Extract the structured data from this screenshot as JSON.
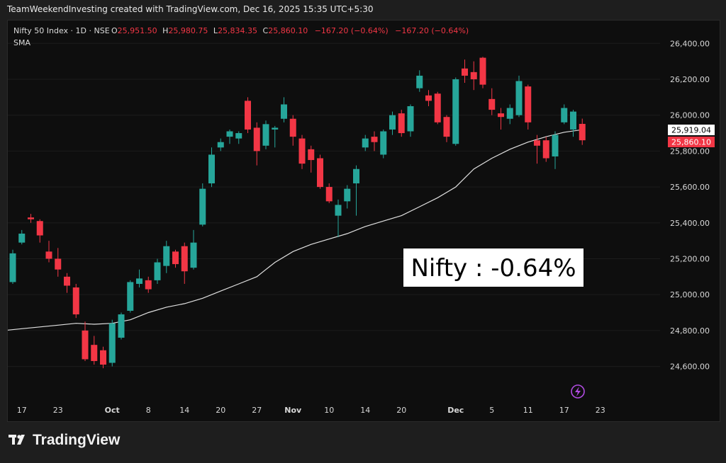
{
  "header": {
    "credit": "TeamWeekendInvesting created with TradingView.com, Dec 16, 2025 15:35 UTC+5:30"
  },
  "legend": {
    "symbol": "Nifty 50 Index · 1D · NSE",
    "o_label": "O",
    "o_value": "25,951.50",
    "h_label": "H",
    "h_value": "25,980.75",
    "l_label": "L",
    "l_value": "25,834.35",
    "c_label": "C",
    "c_value": "25,860.10",
    "change": "−167.20 (−0.64%)",
    "change2": "−167.20 (−0.64%)",
    "indicator": "SMA"
  },
  "callout": {
    "text": "Nifty : -0.64%"
  },
  "price_tags": {
    "sma": "25,919.04",
    "close": "25,860.10"
  },
  "footer": {
    "brand": "TradingView"
  },
  "colors": {
    "up": "#26a69a",
    "down": "#f23645",
    "sma": "#e0e0e0",
    "background": "#0e0e0e",
    "lightning": "#b04be0"
  },
  "chart_data": {
    "type": "candlestick",
    "ylim": [
      24480,
      26480
    ],
    "y_ticks": [
      "26,400.00",
      "26,200.00",
      "26,000.00",
      "25,800.00",
      "25,600.00",
      "25,400.00",
      "25,200.00",
      "25,000.00",
      "24,800.00",
      "24,600.00"
    ],
    "y_tick_values": [
      26400,
      26200,
      26000,
      25800,
      25600,
      25400,
      25200,
      25000,
      24800,
      24600
    ],
    "x_labels": [
      {
        "label": "17",
        "slot": 1
      },
      {
        "label": "23",
        "slot": 5
      },
      {
        "label": "Oct",
        "slot": 11
      },
      {
        "label": "8",
        "slot": 15
      },
      {
        "label": "14",
        "slot": 19
      },
      {
        "label": "20",
        "slot": 23
      },
      {
        "label": "27",
        "slot": 27
      },
      {
        "label": "Nov",
        "slot": 31
      },
      {
        "label": "10",
        "slot": 35
      },
      {
        "label": "14",
        "slot": 39
      },
      {
        "label": "20",
        "slot": 43
      },
      {
        "label": "Dec",
        "slot": 49
      },
      {
        "label": "5",
        "slot": 53
      },
      {
        "label": "11",
        "slot": 57
      },
      {
        "label": "17",
        "slot": 61
      },
      {
        "label": "23",
        "slot": 65
      }
    ],
    "candles": [
      {
        "slot": 0,
        "o": 25070,
        "h": 25250,
        "l": 25060,
        "c": 25230
      },
      {
        "slot": 1,
        "o": 25290,
        "h": 25360,
        "l": 25280,
        "c": 25340
      },
      {
        "slot": 2,
        "o": 25430,
        "h": 25450,
        "l": 25400,
        "c": 25420
      },
      {
        "slot": 3,
        "o": 25410,
        "h": 25420,
        "l": 25290,
        "c": 25330
      },
      {
        "slot": 4,
        "o": 25240,
        "h": 25300,
        "l": 25180,
        "c": 25200
      },
      {
        "slot": 5,
        "o": 25200,
        "h": 25260,
        "l": 25100,
        "c": 25140
      },
      {
        "slot": 6,
        "o": 25100,
        "h": 25120,
        "l": 25010,
        "c": 25050
      },
      {
        "slot": 7,
        "o": 25040,
        "h": 25060,
        "l": 24870,
        "c": 24890
      },
      {
        "slot": 8,
        "o": 24800,
        "h": 24850,
        "l": 24630,
        "c": 24640
      },
      {
        "slot": 9,
        "o": 24720,
        "h": 24770,
        "l": 24610,
        "c": 24630
      },
      {
        "slot": 10,
        "o": 24690,
        "h": 24710,
        "l": 24590,
        "c": 24610
      },
      {
        "slot": 11,
        "o": 24620,
        "h": 24860,
        "l": 24600,
        "c": 24840
      },
      {
        "slot": 12,
        "o": 24760,
        "h": 24900,
        "l": 24750,
        "c": 24890
      },
      {
        "slot": 13,
        "o": 24910,
        "h": 25080,
        "l": 24900,
        "c": 25070
      },
      {
        "slot": 14,
        "o": 25060,
        "h": 25140,
        "l": 25040,
        "c": 25090
      },
      {
        "slot": 15,
        "o": 25080,
        "h": 25100,
        "l": 25010,
        "c": 25030
      },
      {
        "slot": 16,
        "o": 25080,
        "h": 25200,
        "l": 25060,
        "c": 25180
      },
      {
        "slot": 17,
        "o": 25160,
        "h": 25300,
        "l": 25120,
        "c": 25270
      },
      {
        "slot": 18,
        "o": 25240,
        "h": 25250,
        "l": 25150,
        "c": 25170
      },
      {
        "slot": 19,
        "o": 25270,
        "h": 25290,
        "l": 25060,
        "c": 25130
      },
      {
        "slot": 20,
        "o": 25150,
        "h": 25360,
        "l": 25140,
        "c": 25290
      },
      {
        "slot": 21,
        "o": 25390,
        "h": 25620,
        "l": 25380,
        "c": 25590
      },
      {
        "slot": 22,
        "o": 25620,
        "h": 25820,
        "l": 25600,
        "c": 25780
      },
      {
        "slot": 23,
        "o": 25820,
        "h": 25870,
        "l": 25800,
        "c": 25850
      },
      {
        "slot": 24,
        "o": 25880,
        "h": 25920,
        "l": 25840,
        "c": 25910
      },
      {
        "slot": 25,
        "o": 25870,
        "h": 25910,
        "l": 25840,
        "c": 25900
      },
      {
        "slot": 26,
        "o": 26080,
        "h": 26100,
        "l": 25900,
        "c": 25920
      },
      {
        "slot": 27,
        "o": 25930,
        "h": 25960,
        "l": 25720,
        "c": 25800
      },
      {
        "slot": 28,
        "o": 25830,
        "h": 25970,
        "l": 25810,
        "c": 25950
      },
      {
        "slot": 29,
        "o": 25920,
        "h": 25940,
        "l": 25820,
        "c": 25930
      },
      {
        "slot": 30,
        "o": 25980,
        "h": 26100,
        "l": 25960,
        "c": 26060
      },
      {
        "slot": 31,
        "o": 25980,
        "h": 26000,
        "l": 25830,
        "c": 25880
      },
      {
        "slot": 32,
        "o": 25870,
        "h": 25890,
        "l": 25700,
        "c": 25730
      },
      {
        "slot": 33,
        "o": 25810,
        "h": 25830,
        "l": 25680,
        "c": 25750
      },
      {
        "slot": 34,
        "o": 25760,
        "h": 25780,
        "l": 25590,
        "c": 25600
      },
      {
        "slot": 35,
        "o": 25600,
        "h": 25620,
        "l": 25510,
        "c": 25520
      },
      {
        "slot": 36,
        "o": 25440,
        "h": 25530,
        "l": 25320,
        "c": 25500
      },
      {
        "slot": 37,
        "o": 25520,
        "h": 25610,
        "l": 25480,
        "c": 25590
      },
      {
        "slot": 38,
        "o": 25620,
        "h": 25720,
        "l": 25440,
        "c": 25700
      },
      {
        "slot": 39,
        "o": 25820,
        "h": 25890,
        "l": 25800,
        "c": 25870
      },
      {
        "slot": 40,
        "o": 25880,
        "h": 25910,
        "l": 25800,
        "c": 25850
      },
      {
        "slot": 41,
        "o": 25780,
        "h": 25920,
        "l": 25760,
        "c": 25910
      },
      {
        "slot": 42,
        "o": 25920,
        "h": 26020,
        "l": 25890,
        "c": 26000
      },
      {
        "slot": 43,
        "o": 26010,
        "h": 26030,
        "l": 25880,
        "c": 25900
      },
      {
        "slot": 44,
        "o": 25910,
        "h": 26060,
        "l": 25880,
        "c": 26050
      },
      {
        "slot": 45,
        "o": 26150,
        "h": 26250,
        "l": 26130,
        "c": 26220
      },
      {
        "slot": 46,
        "o": 26110,
        "h": 26140,
        "l": 26050,
        "c": 26080
      },
      {
        "slot": 47,
        "o": 26120,
        "h": 26130,
        "l": 25950,
        "c": 25960
      },
      {
        "slot": 48,
        "o": 25990,
        "h": 26000,
        "l": 25850,
        "c": 25880
      },
      {
        "slot": 49,
        "o": 25840,
        "h": 26210,
        "l": 25830,
        "c": 26200
      },
      {
        "slot": 50,
        "o": 26260,
        "h": 26310,
        "l": 26180,
        "c": 26220
      },
      {
        "slot": 51,
        "o": 26240,
        "h": 26300,
        "l": 26140,
        "c": 26200
      },
      {
        "slot": 52,
        "o": 26320,
        "h": 26325,
        "l": 26150,
        "c": 26170
      },
      {
        "slot": 53,
        "o": 26090,
        "h": 26150,
        "l": 26000,
        "c": 26030
      },
      {
        "slot": 54,
        "o": 26010,
        "h": 26040,
        "l": 25920,
        "c": 25990
      },
      {
        "slot": 55,
        "o": 25980,
        "h": 26060,
        "l": 25950,
        "c": 26040
      },
      {
        "slot": 56,
        "o": 26000,
        "h": 26220,
        "l": 25990,
        "c": 26190
      },
      {
        "slot": 57,
        "o": 26160,
        "h": 26170,
        "l": 25920,
        "c": 25960
      },
      {
        "slot": 58,
        "o": 25860,
        "h": 25890,
        "l": 25730,
        "c": 25830
      },
      {
        "slot": 59,
        "o": 25860,
        "h": 25880,
        "l": 25740,
        "c": 25760
      },
      {
        "slot": 60,
        "o": 25770,
        "h": 25910,
        "l": 25700,
        "c": 25890
      },
      {
        "slot": 61,
        "o": 25960,
        "h": 26060,
        "l": 25950,
        "c": 26040
      },
      {
        "slot": 62,
        "o": 25920,
        "h": 26030,
        "l": 25880,
        "c": 26020
      },
      {
        "slot": 63,
        "o": 25951.5,
        "h": 25980.75,
        "l": 25834.35,
        "c": 25860.1
      }
    ],
    "sma": [
      {
        "slot": -1,
        "v": 24800
      },
      {
        "slot": 1,
        "v": 24810
      },
      {
        "slot": 3,
        "v": 24820
      },
      {
        "slot": 5,
        "v": 24830
      },
      {
        "slot": 7,
        "v": 24840
      },
      {
        "slot": 9,
        "v": 24835
      },
      {
        "slot": 11,
        "v": 24840
      },
      {
        "slot": 13,
        "v": 24860
      },
      {
        "slot": 15,
        "v": 24900
      },
      {
        "slot": 17,
        "v": 24930
      },
      {
        "slot": 19,
        "v": 24950
      },
      {
        "slot": 21,
        "v": 24980
      },
      {
        "slot": 23,
        "v": 25020
      },
      {
        "slot": 25,
        "v": 25060
      },
      {
        "slot": 27,
        "v": 25100
      },
      {
        "slot": 28,
        "v": 25140
      },
      {
        "slot": 29,
        "v": 25180
      },
      {
        "slot": 31,
        "v": 25240
      },
      {
        "slot": 33,
        "v": 25280
      },
      {
        "slot": 35,
        "v": 25310
      },
      {
        "slot": 37,
        "v": 25340
      },
      {
        "slot": 39,
        "v": 25380
      },
      {
        "slot": 41,
        "v": 25410
      },
      {
        "slot": 43,
        "v": 25440
      },
      {
        "slot": 45,
        "v": 25490
      },
      {
        "slot": 47,
        "v": 25540
      },
      {
        "slot": 49,
        "v": 25600
      },
      {
        "slot": 50,
        "v": 25650
      },
      {
        "slot": 51,
        "v": 25700
      },
      {
        "slot": 53,
        "v": 25760
      },
      {
        "slot": 55,
        "v": 25810
      },
      {
        "slot": 57,
        "v": 25850
      },
      {
        "slot": 59,
        "v": 25880
      },
      {
        "slot": 61,
        "v": 25905
      },
      {
        "slot": 63,
        "v": 25919.04
      }
    ]
  }
}
